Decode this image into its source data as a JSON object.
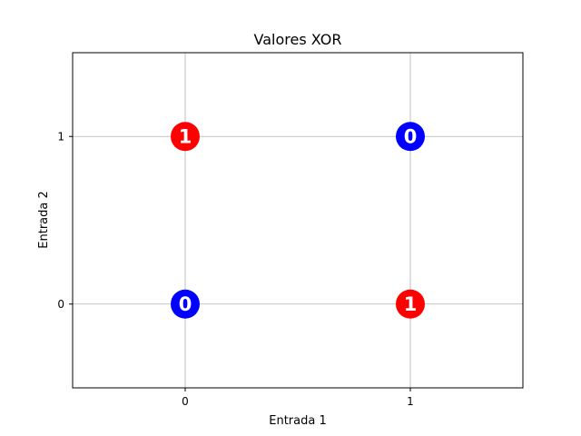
{
  "chart_data": {
    "type": "scatter",
    "title": "Valores XOR",
    "xlabel": "Entrada 1",
    "ylabel": "Entrada 2",
    "xlim": [
      -0.5,
      1.5
    ],
    "ylim": [
      -0.5,
      1.5
    ],
    "xticks": [
      0,
      1
    ],
    "yticks": [
      0,
      1
    ],
    "xtick_labels": [
      "0",
      "1"
    ],
    "ytick_labels": [
      "0",
      "1"
    ],
    "grid": true,
    "points": [
      {
        "x": 0,
        "y": 0,
        "label": "0",
        "color": "#0000ff"
      },
      {
        "x": 0,
        "y": 1,
        "label": "1",
        "color": "#ff0000"
      },
      {
        "x": 1,
        "y": 0,
        "label": "1",
        "color": "#ff0000"
      },
      {
        "x": 1,
        "y": 1,
        "label": "0",
        "color": "#0000ff"
      }
    ]
  }
}
